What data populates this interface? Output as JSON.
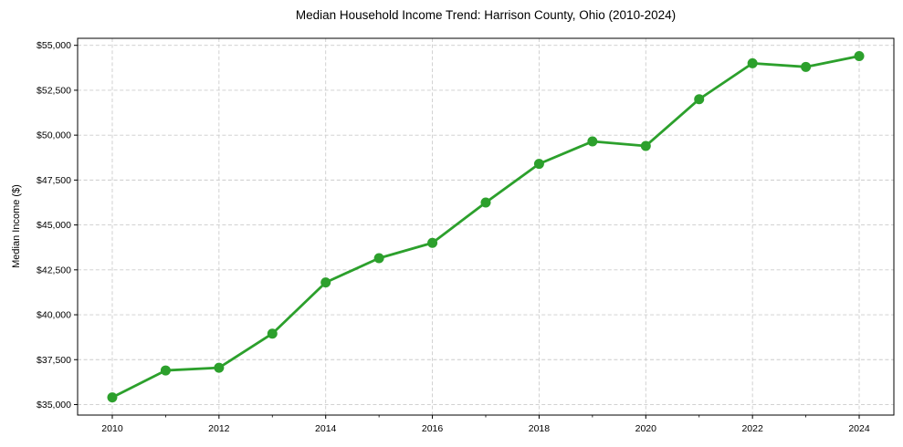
{
  "chart_data": {
    "type": "line",
    "title": "Median Household Income Trend: Harrison County, Ohio (2010-2024)",
    "xlabel": "",
    "ylabel": "Median Income ($)",
    "x": [
      2010,
      2011,
      2012,
      2013,
      2014,
      2015,
      2016,
      2017,
      2018,
      2019,
      2020,
      2021,
      2022,
      2023,
      2024
    ],
    "values": [
      35400,
      36900,
      37050,
      38950,
      41800,
      43150,
      44000,
      46250,
      48400,
      49650,
      49400,
      52000,
      54000,
      53800,
      54400
    ],
    "x_major_ticks": [
      2010,
      2012,
      2014,
      2016,
      2018,
      2020,
      2022,
      2024
    ],
    "x_minor_ticks": [
      2011,
      2013,
      2015,
      2017,
      2019,
      2021,
      2023
    ],
    "y_ticks": [
      {
        "value": 35000,
        "label": "$35,000"
      },
      {
        "value": 37500,
        "label": "$37,500"
      },
      {
        "value": 40000,
        "label": "$40,000"
      },
      {
        "value": 42500,
        "label": "$42,500"
      },
      {
        "value": 45000,
        "label": "$45,000"
      },
      {
        "value": 47500,
        "label": "$47,500"
      },
      {
        "value": 50000,
        "label": "$50,000"
      },
      {
        "value": 52500,
        "label": "$52,500"
      },
      {
        "value": 55000,
        "label": "$55,000"
      }
    ],
    "xlim": [
      2009.35,
      2024.65
    ],
    "ylim": [
      34415,
      55391
    ],
    "grid": true,
    "grid_style": "dashed",
    "legend_position": "none",
    "line_color": "#2ca02c",
    "marker": "circle",
    "grid_color": "#cccccc",
    "axis_color": "#000000"
  }
}
